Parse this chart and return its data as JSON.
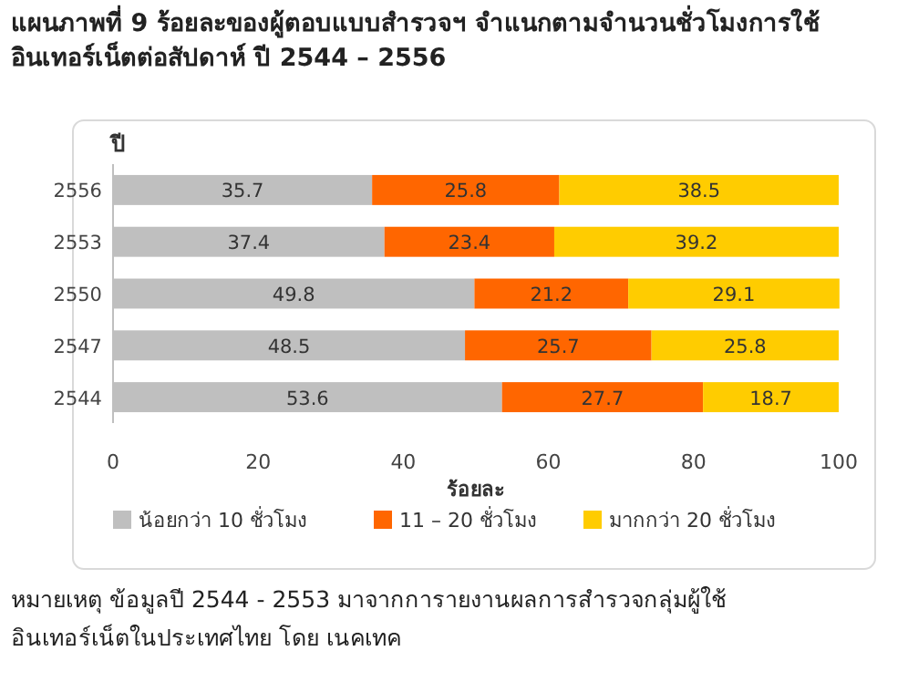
{
  "chart_data": {
    "type": "bar",
    "orientation": "horizontal",
    "stacked": true,
    "title": "แผนภาพที่  9 ร้อยละของผู้ตอบแบบสำรวจฯ จำแนกตามจำนวนชั่วโมงการใช้อินเทอร์เน็ตต่อสัปดาห์ ปี 2544 – 2556",
    "ylabel": "ปี",
    "xlabel": "ร้อยละ",
    "categories": [
      "2556",
      "2553",
      "2550",
      "2547",
      "2544"
    ],
    "series": [
      {
        "name": "น้อยกว่า 10 ชั่วโมง",
        "color": "#bfbfbf",
        "values": [
          35.7,
          37.4,
          49.8,
          48.5,
          53.6
        ]
      },
      {
        "name": "11 – 20 ชั่วโมง",
        "color": "#ff6600",
        "values": [
          25.8,
          23.4,
          21.2,
          25.7,
          27.7
        ]
      },
      {
        "name": "มากกว่า 20 ชั่วโมง",
        "color": "#ffcc00",
        "values": [
          38.5,
          39.2,
          29.1,
          25.8,
          18.7
        ]
      }
    ],
    "xlim": [
      0,
      100
    ],
    "xticks": [
      0,
      20,
      40,
      60,
      80,
      100
    ],
    "data_labels": true,
    "legend": "bottom",
    "grid": false,
    "annotations": [
      "หมายเหตุ ข้อมูลปี 2544 - 2553 มาจากการายงานผลการสำรวจกลุ่มผู้ใช้อินเทอร์เน็ตในประเทศไทย  โดย เนคเทค"
    ]
  }
}
